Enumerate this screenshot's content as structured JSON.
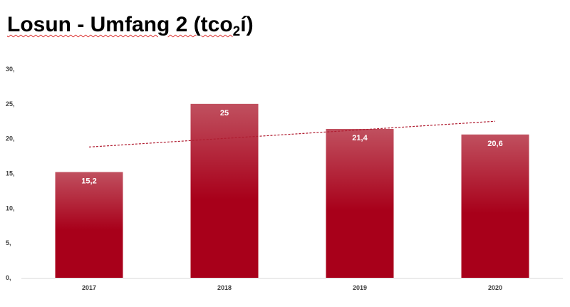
{
  "title": {
    "main": "Losun - Umfang 2 (tco",
    "sub": "2",
    "end": "í)"
  },
  "chart_data": {
    "type": "bar",
    "categories": [
      "2017",
      "2018",
      "2019",
      "2020"
    ],
    "values": [
      15.2,
      25,
      21.4,
      20.6
    ],
    "data_labels": [
      "15,2",
      "25",
      "21,4",
      "20,6"
    ],
    "y_ticks": [
      0,
      5,
      10,
      15,
      20,
      25,
      30
    ],
    "y_tick_labels": [
      "0,",
      "5,",
      "10,",
      "15,",
      "20,",
      "25,",
      "30,"
    ],
    "ylim": [
      0,
      30
    ],
    "trendline": {
      "type": "linear",
      "style": "dashed",
      "start": 18.8,
      "end": 22.5
    },
    "grid": false,
    "legend": "none",
    "colors": {
      "bar_top": "#c0505f",
      "bar_bottom": "#a8001a",
      "trend": "#b01c30",
      "axis": "#d9d9d9"
    },
    "xlabel": "",
    "ylabel": ""
  }
}
